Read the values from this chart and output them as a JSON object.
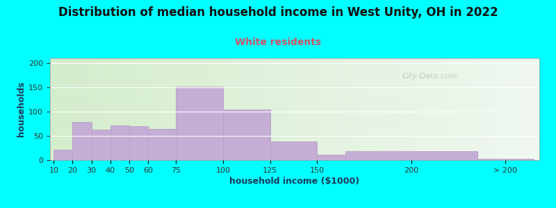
{
  "title": "Distribution of median household income in West Unity, OH in 2022",
  "subtitle": "White residents",
  "xlabel": "household income ($1000)",
  "ylabel": "households",
  "background_outer": "#00FFFF",
  "background_inner_left": "#d4edcc",
  "background_inner_right": "#f0f8f0",
  "bar_color": "#c4aed6",
  "bar_edgecolor": "#b89ec8",
  "yticks": [
    0,
    50,
    100,
    150,
    200
  ],
  "ylim": [
    0,
    210
  ],
  "values": [
    22,
    78,
    63,
    72,
    70,
    65,
    152,
    105,
    38,
    12,
    19,
    3
  ],
  "bar_left": [
    10,
    20,
    30,
    40,
    50,
    60,
    75,
    100,
    125,
    150,
    165,
    235
  ],
  "bar_widths": [
    10,
    10,
    10,
    10,
    10,
    15,
    25,
    25,
    25,
    15,
    70,
    30
  ],
  "xtick_positions": [
    10,
    20,
    30,
    40,
    50,
    60,
    75,
    100,
    125,
    150,
    200,
    250
  ],
  "xtick_labels": [
    "10",
    "20",
    "30",
    "40",
    "50",
    "60",
    "75",
    "100",
    "125",
    "150",
    "200",
    "> 200"
  ],
  "title_fontsize": 12,
  "subtitle_fontsize": 10,
  "subtitle_color": "#cc5566",
  "axis_label_fontsize": 9,
  "tick_fontsize": 8,
  "title_color": "#111111"
}
